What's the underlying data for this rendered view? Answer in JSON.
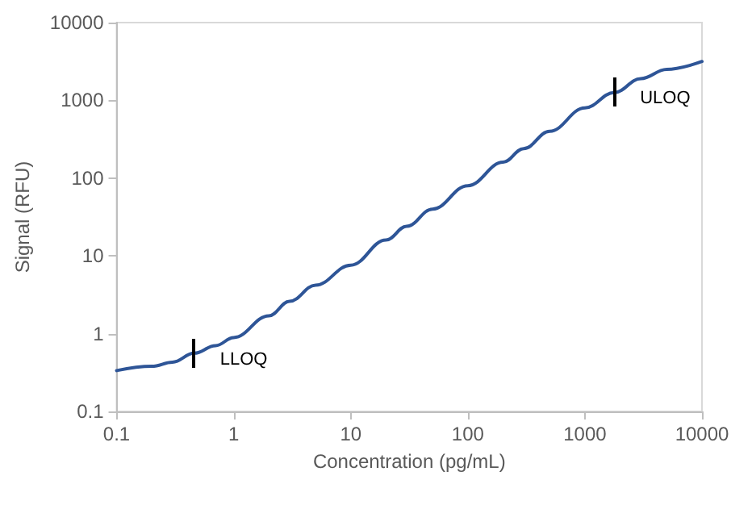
{
  "chart_data": {
    "type": "line",
    "xlabel": "Concentration (pg/mL)",
    "ylabel": "Signal (RFU)",
    "log": "xy",
    "xlim": [
      0.1,
      10000
    ],
    "xticks": [
      0.1,
      1,
      10,
      100,
      1000,
      10000
    ],
    "ylim": [
      0.1,
      10000
    ],
    "yticks": [
      0.1,
      1,
      10,
      100,
      1000,
      10000
    ],
    "grid": false,
    "marker": "none",
    "line_style": "solid",
    "series": [
      {
        "color": "#2e5597",
        "x": [
          0.1,
          0.2,
          0.3,
          0.46,
          0.7,
          1,
          2,
          3,
          5,
          10,
          20,
          30,
          50,
          100,
          200,
          300,
          500,
          1000,
          1780,
          3000,
          5000,
          10000
        ],
        "values": [
          0.335,
          0.38,
          0.43,
          0.56,
          0.7,
          0.89,
          1.7,
          2.6,
          4.2,
          7.6,
          16,
          24,
          40,
          80,
          160,
          240,
          400,
          800,
          1260,
          1900,
          2500,
          3160
        ]
      }
    ],
    "annotations": [
      {
        "text": "LLOQ",
        "x": 0.46,
        "y": 0.56
      },
      {
        "text": "ULOQ",
        "x": 1780,
        "y": 1260
      }
    ]
  }
}
